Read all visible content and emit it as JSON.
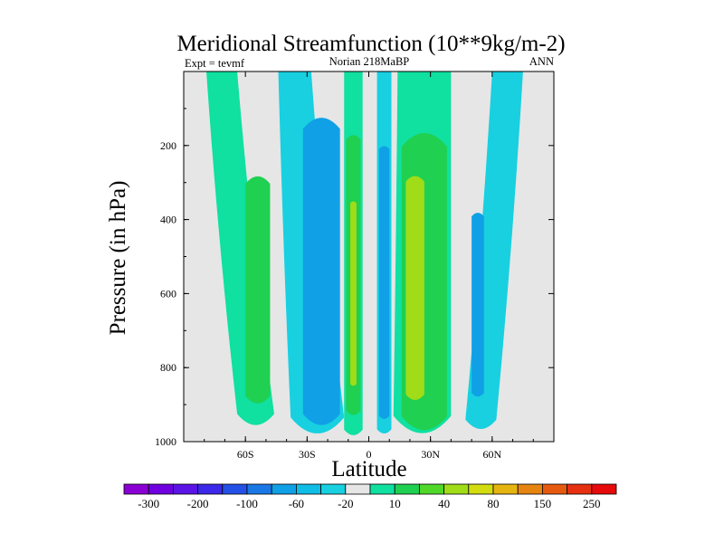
{
  "chart_data": {
    "type": "contour",
    "title": "Meridional Streamfunction (10**9kg/m-2)",
    "left_string": "Expt = tevmf",
    "center_string": "Norian 218MaBP",
    "right_string": "ANN",
    "xlabel": "Latitude",
    "ylabel": "Pressure (in hPa)",
    "xlim": [
      -90,
      90
    ],
    "ylim": [
      1000,
      0
    ],
    "xticks": [
      {
        "value": -60,
        "label": "60S"
      },
      {
        "value": -30,
        "label": "30S"
      },
      {
        "value": 0,
        "label": "0"
      },
      {
        "value": 30,
        "label": "30N"
      },
      {
        "value": 60,
        "label": "60N"
      }
    ],
    "yticks": [
      {
        "value": 200,
        "label": "200"
      },
      {
        "value": 400,
        "label": "400"
      },
      {
        "value": 600,
        "label": "600"
      },
      {
        "value": 800,
        "label": "800"
      },
      {
        "value": 1000,
        "label": "1000"
      }
    ],
    "colorbar": {
      "colors": [
        "#8a00d4",
        "#6f00e0",
        "#5a14e6",
        "#3b28e8",
        "#2350e6",
        "#1a78e6",
        "#10a0e6",
        "#10bde6",
        "#18d0e0",
        "#e6e6e6",
        "#10e0a0",
        "#20d050",
        "#50d828",
        "#a0dc18",
        "#d2dc10",
        "#e6b410",
        "#e68410",
        "#e65a10",
        "#e63010",
        "#e60a0a"
      ],
      "labels": [
        {
          "after_box": 1,
          "label": "-300"
        },
        {
          "after_box": 3,
          "label": "-200"
        },
        {
          "after_box": 5,
          "label": "-100"
        },
        {
          "after_box": 7,
          "label": "-60"
        },
        {
          "after_box": 9,
          "label": "-20"
        },
        {
          "after_box": 11,
          "label": "10"
        },
        {
          "after_box": 13,
          "label": "40"
        },
        {
          "after_box": 15,
          "label": "80"
        },
        {
          "after_box": 17,
          "label": "150"
        },
        {
          "after_box": 19,
          "label": "250"
        }
      ]
    },
    "regions": [
      {
        "id": "sh-outer-positive",
        "level": 10,
        "color": "#10e0a0",
        "lat_left_top": -79,
        "lat_right_top": -64,
        "lat_left_bottom": -64,
        "lat_right_bottom": -46,
        "p_top": 0,
        "p_bottom": 960
      },
      {
        "id": "sh-outer-positive-core",
        "level": 40,
        "color": "#20d050",
        "lat_left": -60,
        "lat_right": -48,
        "p_top": 280,
        "p_bottom": 900
      },
      {
        "id": "sh-negative",
        "level": -20,
        "color": "#18d0e0",
        "lat_left_top": -44,
        "lat_right_top": -28,
        "lat_left_bottom": -38,
        "lat_right_bottom": -12,
        "p_top": 0,
        "p_bottom": 985
      },
      {
        "id": "sh-negative-core",
        "level": -60,
        "color": "#10a0e6",
        "lat_left": -32,
        "lat_right": -14,
        "p_top": 120,
        "p_bottom": 960
      },
      {
        "id": "equatorial-positive",
        "level": 10,
        "color": "#10e0a0",
        "lat_left": -12,
        "lat_right": -3,
        "p_top": 0,
        "p_bottom": 985
      },
      {
        "id": "equatorial-positive-core",
        "level": 40,
        "color": "#20d050",
        "lat_left": -11,
        "lat_right": -4,
        "p_top": 170,
        "p_bottom": 930
      },
      {
        "id": "equatorial-positive-max",
        "level": 80,
        "color": "#a0dc18",
        "lat_left": -9,
        "lat_right": -6,
        "p_top": 350,
        "p_bottom": 850
      },
      {
        "id": "nh-negative",
        "level": -20,
        "color": "#18d0e0",
        "lat_left": 4,
        "lat_right": 11,
        "p_top": 0,
        "p_bottom": 980
      },
      {
        "id": "nh-negative-core",
        "level": -60,
        "color": "#10a0e6",
        "lat_left": 5,
        "lat_right": 10,
        "p_top": 200,
        "p_bottom": 940
      },
      {
        "id": "nh-positive",
        "level": 10,
        "color": "#10e0a0",
        "lat_left_top": 14,
        "lat_right_top": 40,
        "lat_left_bottom": 12,
        "lat_right_bottom": 40,
        "p_top": 0,
        "p_bottom": 985
      },
      {
        "id": "nh-positive-core",
        "level": 40,
        "color": "#20d050",
        "lat_left": 16,
        "lat_right": 38,
        "p_top": 160,
        "p_bottom": 975
      },
      {
        "id": "nh-positive-max",
        "level": 80,
        "color": "#a0dc18",
        "lat_left": 18,
        "lat_right": 27,
        "p_top": 280,
        "p_bottom": 890
      },
      {
        "id": "nh-outer-negative",
        "level": -20,
        "color": "#18d0e0",
        "lat_left_top": 60,
        "lat_right_top": 75,
        "lat_left_bottom": 47,
        "lat_right_bottom": 62,
        "p_top": 0,
        "p_bottom": 970
      },
      {
        "id": "nh-outer-negative-core",
        "level": -60,
        "color": "#10a0e6",
        "lat_left": 50,
        "lat_right": 56,
        "p_top": 380,
        "p_bottom": 880
      }
    ]
  }
}
